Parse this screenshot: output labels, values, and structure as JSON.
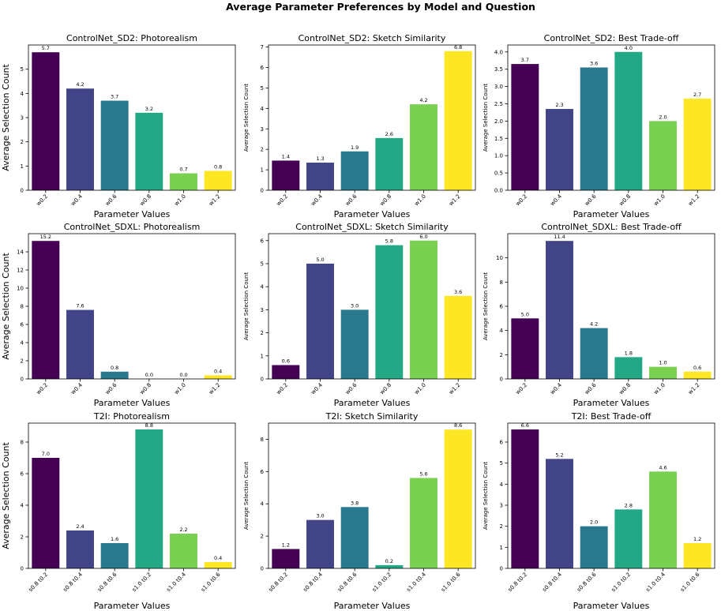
{
  "figure": {
    "suptitle": "Average Parameter Preferences by Model and Question"
  },
  "palette": [
    "#440154",
    "#414487",
    "#2a788e",
    "#22a884",
    "#7ad151",
    "#fde725"
  ],
  "chart_data": [
    {
      "type": "bar",
      "title": "ControlNet_SD2: Photorealism",
      "xlabel": "Parameter Values",
      "ylabel": "Average Selection Count",
      "categories": [
        "w0.2",
        "w0.4",
        "w0.6",
        "w0.8",
        "w1.0",
        "w1.2"
      ],
      "values": [
        5.7,
        4.2,
        3.7,
        3.2,
        0.7,
        0.8
      ],
      "value_labels": [
        "5.7",
        "4.2",
        "3.7",
        "3.2",
        "0.7",
        "0.8"
      ],
      "ylim": [
        0,
        6.0
      ],
      "yticks": [
        0,
        1,
        2,
        3,
        4,
        5
      ],
      "ytick_labels": [
        "0",
        "1",
        "2",
        "3",
        "4",
        "5"
      ],
      "large_ylabel": true
    },
    {
      "type": "bar",
      "title": "ControlNet_SD2: Sketch Similarity",
      "xlabel": "Parameter Values",
      "ylabel": "Average Selection Count",
      "categories": [
        "w0.2",
        "w0.4",
        "w0.6",
        "w0.8",
        "w1.0",
        "w1.2"
      ],
      "values": [
        1.45,
        1.35,
        1.9,
        2.55,
        4.2,
        6.8
      ],
      "value_labels": [
        "1.4",
        "1.3",
        "1.9",
        "2.6",
        "4.2",
        "6.8"
      ],
      "ylim": [
        0,
        7.1
      ],
      "yticks": [
        0,
        1,
        2,
        3,
        4,
        5,
        6,
        7
      ],
      "ytick_labels": [
        "0",
        "1",
        "2",
        "3",
        "4",
        "5",
        "6",
        "7"
      ],
      "large_ylabel": false
    },
    {
      "type": "bar",
      "title": "ControlNet_SD2: Best Trade-off",
      "xlabel": "Parameter Values",
      "ylabel": "Average Selection Count",
      "categories": [
        "w0.2",
        "w0.4",
        "w0.6",
        "w0.8",
        "w1.0",
        "w1.2"
      ],
      "values": [
        3.65,
        2.35,
        3.55,
        4.0,
        2.0,
        2.65
      ],
      "value_labels": [
        "3.7",
        "2.3",
        "3.6",
        "4.0",
        "2.0",
        "2.7"
      ],
      "ylim": [
        0,
        4.2
      ],
      "yticks": [
        0,
        0.5,
        1.0,
        1.5,
        2.0,
        2.5,
        3.0,
        3.5,
        4.0
      ],
      "ytick_labels": [
        "0.0",
        "0.5",
        "1.0",
        "1.5",
        "2.0",
        "2.5",
        "3.0",
        "3.5",
        "4.0"
      ],
      "large_ylabel": false
    },
    {
      "type": "bar",
      "title": "ControlNet_SDXL: Photorealism",
      "xlabel": "Parameter Values",
      "ylabel": "Average Selection Count",
      "categories": [
        "w0.2",
        "w0.4",
        "w0.6",
        "w0.8",
        "w1.0",
        "w1.2"
      ],
      "values": [
        15.2,
        7.6,
        0.8,
        0.0,
        0.0,
        0.4
      ],
      "value_labels": [
        "15.2",
        "7.6",
        "0.8",
        "0.0",
        "0.0",
        "0.4"
      ],
      "ylim": [
        0,
        16.0
      ],
      "yticks": [
        0,
        2,
        4,
        6,
        8,
        10,
        12,
        14
      ],
      "ytick_labels": [
        "0",
        "2",
        "4",
        "6",
        "8",
        "10",
        "12",
        "14"
      ],
      "large_ylabel": true
    },
    {
      "type": "bar",
      "title": "ControlNet_SDXL: Sketch Similarity",
      "xlabel": "Parameter Values",
      "ylabel": "Average Selection Count",
      "categories": [
        "w0.2",
        "w0.4",
        "w0.6",
        "w0.8",
        "w1.0",
        "w1.2"
      ],
      "values": [
        0.6,
        5.0,
        3.0,
        5.8,
        6.0,
        3.6
      ],
      "value_labels": [
        "0.6",
        "5.0",
        "3.0",
        "5.8",
        "6.0",
        "3.6"
      ],
      "ylim": [
        0,
        6.3
      ],
      "yticks": [
        0,
        1,
        2,
        3,
        4,
        5,
        6
      ],
      "ytick_labels": [
        "0",
        "1",
        "2",
        "3",
        "4",
        "5",
        "6"
      ],
      "large_ylabel": false
    },
    {
      "type": "bar",
      "title": "ControlNet_SDXL: Best Trade-off",
      "xlabel": "Parameter Values",
      "ylabel": "Average Selection Count",
      "categories": [
        "w0.2",
        "w0.4",
        "w0.6",
        "w0.8",
        "w1.0",
        "w1.2"
      ],
      "values": [
        5.0,
        11.4,
        4.2,
        1.8,
        1.0,
        0.6
      ],
      "value_labels": [
        "5.0",
        "11.4",
        "4.2",
        "1.8",
        "1.0",
        "0.6"
      ],
      "ylim": [
        0,
        12.0
      ],
      "yticks": [
        0,
        2,
        4,
        6,
        8,
        10
      ],
      "ytick_labels": [
        "0",
        "2",
        "4",
        "6",
        "8",
        "10"
      ],
      "large_ylabel": false
    },
    {
      "type": "bar",
      "title": "T2I: Photorealism",
      "xlabel": "Parameter Values",
      "ylabel": "Average Selection Count",
      "categories": [
        "s0.8 t0.2",
        "s0.8 t0.4",
        "s0.8 t0.6",
        "s1.0 t0.2",
        "s1.0 t0.4",
        "s1.0 t0.6"
      ],
      "values": [
        7.0,
        2.4,
        1.6,
        8.8,
        2.2,
        0.4
      ],
      "value_labels": [
        "7.0",
        "2.4",
        "1.6",
        "8.8",
        "2.2",
        "0.4"
      ],
      "ylim": [
        0,
        9.2
      ],
      "yticks": [
        0,
        2,
        4,
        6,
        8
      ],
      "ytick_labels": [
        "0",
        "2",
        "4",
        "6",
        "8"
      ],
      "large_ylabel": true
    },
    {
      "type": "bar",
      "title": "T2I: Sketch Similarity",
      "xlabel": "Parameter Values",
      "ylabel": "Average Selection Count",
      "categories": [
        "s0.8 t0.2",
        "s0.8 t0.4",
        "s0.8 t0.6",
        "s1.0 t0.2",
        "s1.0 t0.4",
        "s1.0 t0.6"
      ],
      "values": [
        1.2,
        3.0,
        3.8,
        0.2,
        5.6,
        8.6
      ],
      "value_labels": [
        "1.2",
        "3.0",
        "3.8",
        "0.2",
        "5.6",
        "8.6"
      ],
      "ylim": [
        0,
        9.0
      ],
      "yticks": [
        0,
        2,
        4,
        6,
        8
      ],
      "ytick_labels": [
        "0",
        "2",
        "4",
        "6",
        "8"
      ],
      "large_ylabel": false
    },
    {
      "type": "bar",
      "title": "T2I: Best Trade-off",
      "xlabel": "Parameter Values",
      "ylabel": "Average Selection Count",
      "categories": [
        "s0.8 t0.2",
        "s0.8 t0.4",
        "s0.8 t0.6",
        "s1.0 t0.2",
        "s1.0 t0.4",
        "s1.0 t0.6"
      ],
      "values": [
        6.6,
        5.2,
        2.0,
        2.8,
        4.6,
        1.2
      ],
      "value_labels": [
        "6.6",
        "5.2",
        "2.0",
        "2.8",
        "4.6",
        "1.2"
      ],
      "ylim": [
        0,
        6.9
      ],
      "yticks": [
        0,
        1,
        2,
        3,
        4,
        5,
        6
      ],
      "ytick_labels": [
        "0",
        "1",
        "2",
        "3",
        "4",
        "5",
        "6"
      ],
      "large_ylabel": false
    }
  ]
}
